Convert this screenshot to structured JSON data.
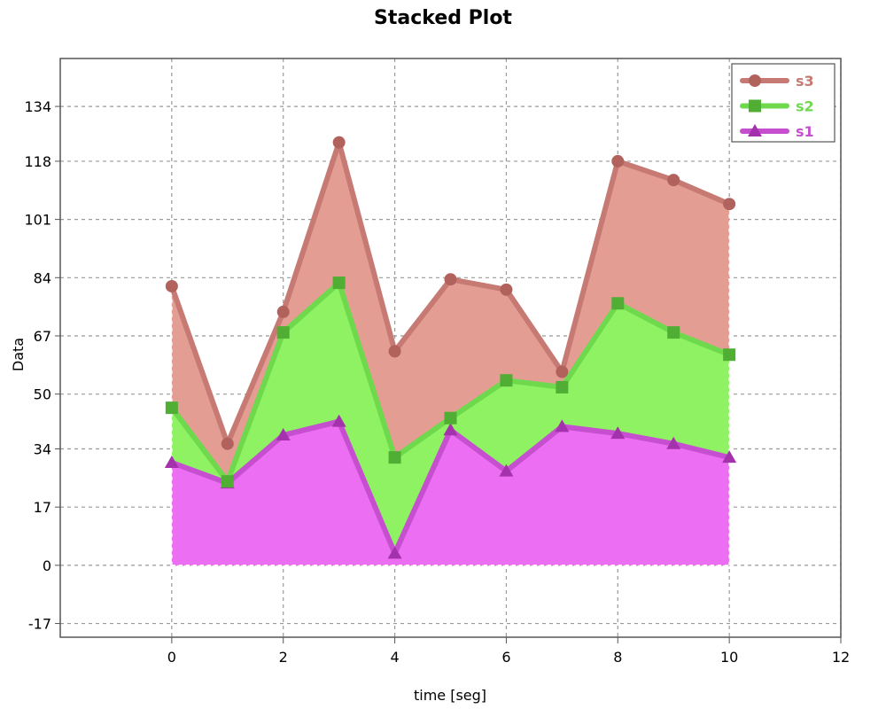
{
  "chart_data": {
    "type": "area",
    "stacked": true,
    "title": "Stacked Plot",
    "xlabel": "time [seg]",
    "ylabel": "Data",
    "xlim": [
      -2,
      12
    ],
    "ylim": [
      -21,
      148
    ],
    "x_ticks": [
      0,
      2,
      4,
      6,
      8,
      10,
      12
    ],
    "y_ticks": [
      -17,
      0,
      17,
      34,
      50,
      67,
      84,
      101,
      118,
      134
    ],
    "grid": true,
    "legend_position": "top-right",
    "x": [
      0,
      1,
      2,
      3,
      4,
      5,
      6,
      7,
      8,
      9,
      10
    ],
    "series": [
      {
        "name": "s1",
        "marker": "triangle",
        "line_color": "#c64fd0",
        "fill_color": "#ec6ef2",
        "marker_color": "#a532ad",
        "values": [
          30,
          24,
          38,
          42,
          3.5,
          39.5,
          27.5,
          40.5,
          38.5,
          35.5,
          31.5
        ]
      },
      {
        "name": "s2",
        "marker": "square",
        "line_color": "#6fd94d",
        "fill_color": "#8ff263",
        "marker_color": "#4fae33",
        "values": [
          16,
          0.5,
          30,
          40.5,
          28,
          3.5,
          26.5,
          11.5,
          38,
          32.5,
          30
        ]
      },
      {
        "name": "s3",
        "marker": "circle",
        "line_color": "#c67a73",
        "fill_color": "#e39d93",
        "marker_color": "#b1625c",
        "values": [
          35.5,
          11,
          6,
          41,
          31,
          40.5,
          26.5,
          4.5,
          41.5,
          44.5,
          44
        ]
      }
    ]
  }
}
